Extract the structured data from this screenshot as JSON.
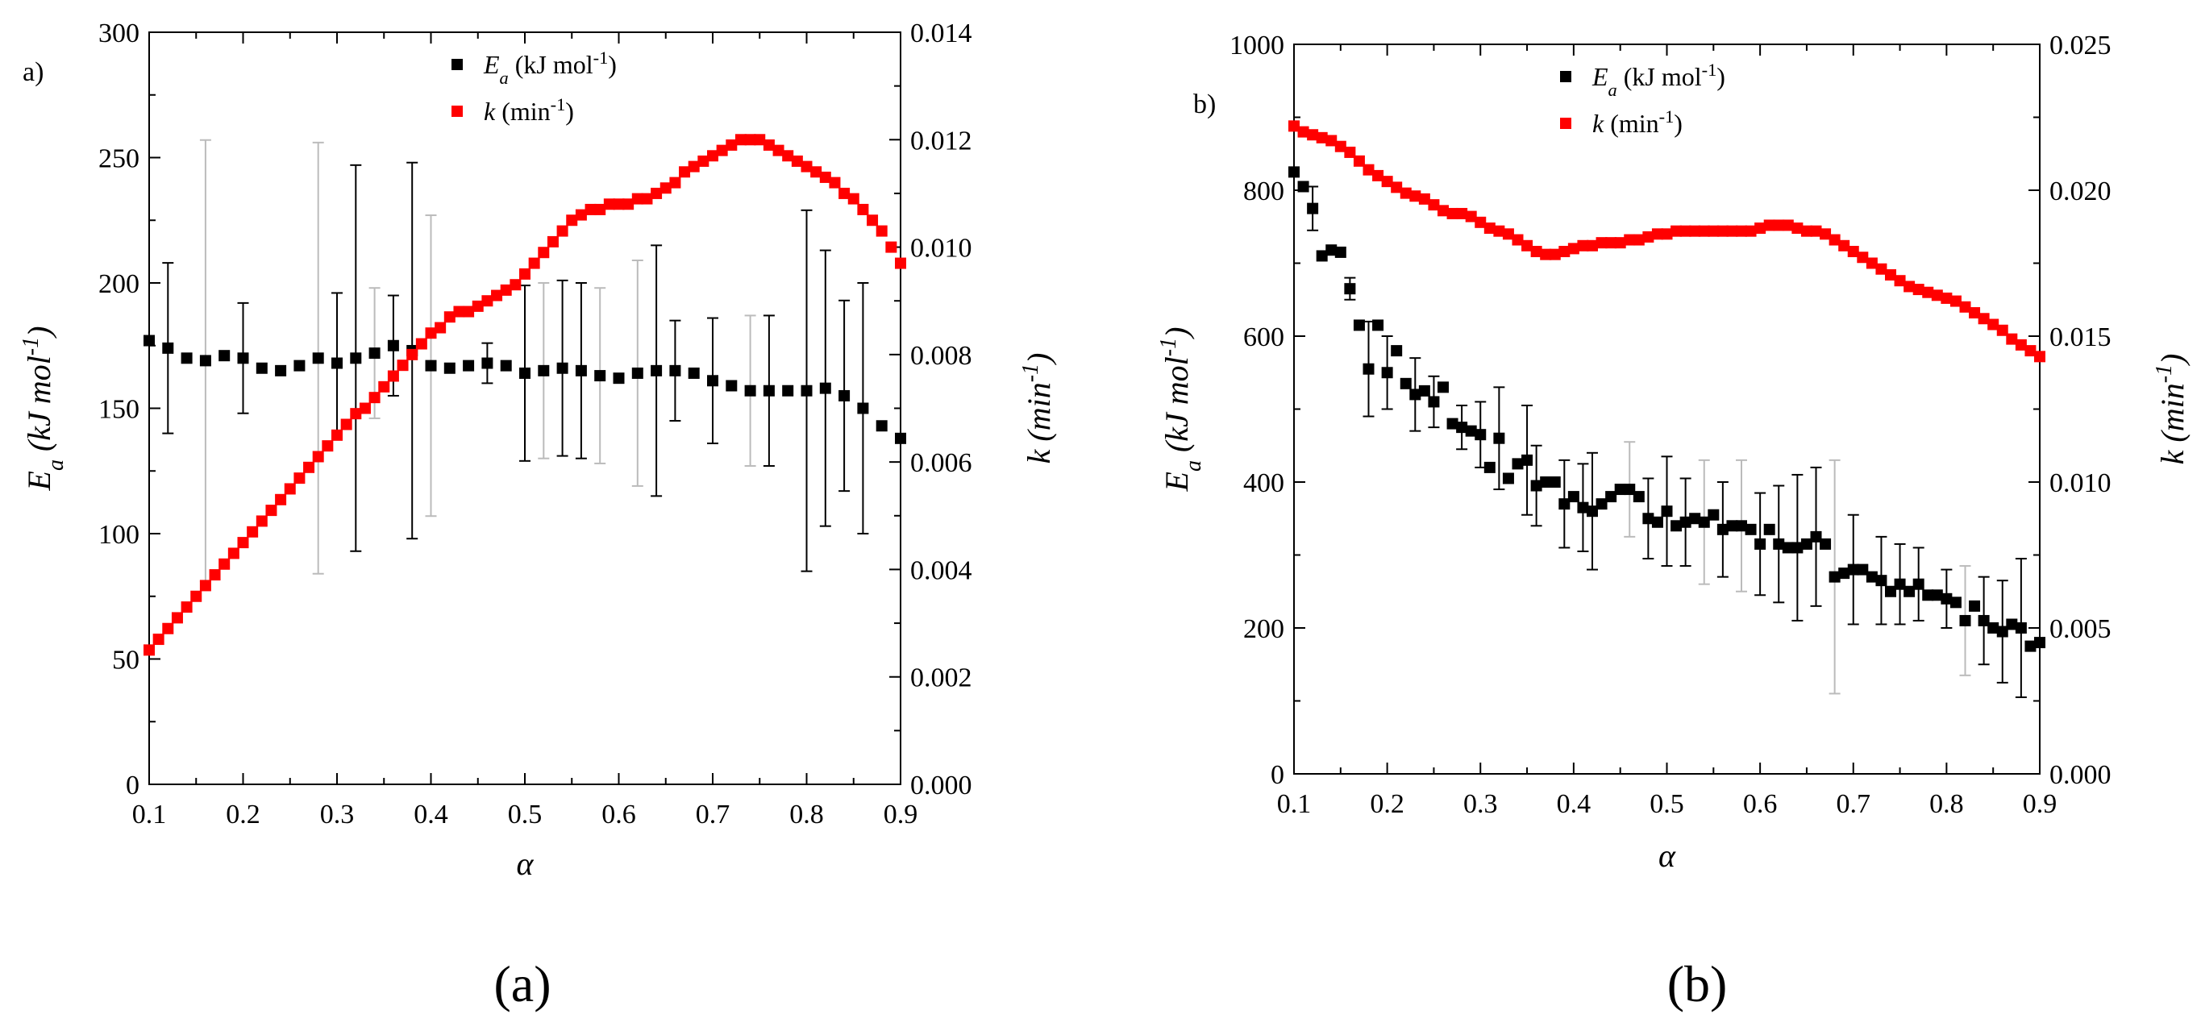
{
  "figure": {
    "captions": [
      "(a)",
      "(b)"
    ],
    "colors": {
      "ea": "#000000",
      "k": "#ff0000",
      "err_light": "#bbbbbb"
    }
  },
  "chart_data": [
    {
      "type": "scatter",
      "panel_label": "a)",
      "caption": "(a)",
      "xlabel": "α",
      "ylabel_left": {
        "sym": "E",
        "sub": "a",
        "unit": " (kJ mol",
        "sup": "-1",
        "close": ")"
      },
      "ylabel_right": {
        "sym": "k",
        "unit": " (min",
        "sup": "-1",
        "close": ")"
      },
      "xlim": [
        0.1,
        0.9
      ],
      "xticks": [
        0.1,
        0.2,
        0.3,
        0.4,
        0.5,
        0.6,
        0.7,
        0.8,
        0.9
      ],
      "xtick_labels": [
        "0.1",
        "0.2",
        "0.3",
        "0.4",
        "0.5",
        "0.6",
        "0.7",
        "0.8",
        "0.9"
      ],
      "ylim_left": [
        0,
        300
      ],
      "yticks_left": [
        0,
        50,
        100,
        150,
        200,
        250,
        300
      ],
      "ytick_labels_left": [
        "0",
        "50",
        "100",
        "150",
        "200",
        "250",
        "300"
      ],
      "ylim_right": [
        0,
        0.014
      ],
      "yticks_right": [
        0,
        0.002,
        0.004,
        0.006,
        0.008,
        0.01,
        0.012,
        0.014
      ],
      "ytick_labels_right": [
        "0.000",
        "0.002",
        "0.004",
        "0.006",
        "0.008",
        "0.010",
        "0.012",
        "0.014"
      ],
      "legend": [
        {
          "sym": "E",
          "sub": "a",
          "unit": " (kJ mol",
          "sup": "-1",
          "close": ")",
          "color": "#000000"
        },
        {
          "sym": "k",
          "unit": " (min",
          "sup": "-1",
          "close": ")",
          "color": "#ff0000"
        }
      ],
      "series": [
        {
          "name": "Ea (kJ mol-1)",
          "axis": "left",
          "color": "#000000",
          "x": [
            0.1,
            0.12,
            0.14,
            0.16,
            0.18,
            0.2,
            0.22,
            0.24,
            0.26,
            0.28,
            0.3,
            0.32,
            0.34,
            0.36,
            0.38,
            0.4,
            0.42,
            0.44,
            0.46,
            0.48,
            0.5,
            0.52,
            0.54,
            0.56,
            0.58,
            0.6,
            0.62,
            0.64,
            0.66,
            0.68,
            0.7,
            0.72,
            0.74,
            0.76,
            0.78,
            0.8,
            0.82,
            0.84,
            0.86,
            0.88,
            0.9
          ],
          "y": [
            177,
            174,
            170,
            169,
            171,
            170,
            166,
            165,
            167,
            170,
            168,
            170,
            172,
            175,
            173,
            167,
            166,
            167,
            168,
            167,
            164,
            165,
            166,
            165,
            163,
            162,
            164,
            165,
            165,
            164,
            161,
            159,
            157,
            157,
            157,
            157,
            158,
            155,
            150,
            143,
            138
          ],
          "err": [
            0,
            34,
            0,
            88,
            0,
            22,
            0,
            0,
            0,
            86,
            28,
            77,
            26,
            20,
            75,
            60,
            0,
            0,
            8,
            0,
            35,
            35,
            35,
            35,
            35,
            0,
            45,
            50,
            20,
            0,
            25,
            0,
            30,
            30,
            0,
            72,
            55,
            38,
            50,
            0,
            0
          ],
          "err_light": [
            false,
            false,
            false,
            true,
            false,
            false,
            false,
            false,
            false,
            true,
            false,
            false,
            true,
            false,
            false,
            true,
            false,
            false,
            false,
            false,
            false,
            true,
            false,
            false,
            true,
            false,
            true,
            false,
            false,
            false,
            false,
            false,
            true,
            false,
            false,
            false,
            false,
            false,
            false,
            false,
            false
          ]
        },
        {
          "name": "k (min-1)",
          "axis": "right",
          "color": "#ff0000",
          "x": [
            0.1,
            0.11,
            0.12,
            0.13,
            0.14,
            0.15,
            0.16,
            0.17,
            0.18,
            0.19,
            0.2,
            0.21,
            0.22,
            0.23,
            0.24,
            0.25,
            0.26,
            0.27,
            0.28,
            0.29,
            0.3,
            0.31,
            0.32,
            0.33,
            0.34,
            0.35,
            0.36,
            0.37,
            0.38,
            0.39,
            0.4,
            0.41,
            0.42,
            0.43,
            0.44,
            0.45,
            0.46,
            0.47,
            0.48,
            0.49,
            0.5,
            0.51,
            0.52,
            0.53,
            0.54,
            0.55,
            0.56,
            0.57,
            0.58,
            0.59,
            0.6,
            0.61,
            0.62,
            0.63,
            0.64,
            0.65,
            0.66,
            0.67,
            0.68,
            0.69,
            0.7,
            0.71,
            0.72,
            0.73,
            0.74,
            0.75,
            0.76,
            0.77,
            0.78,
            0.79,
            0.8,
            0.81,
            0.82,
            0.83,
            0.84,
            0.85,
            0.86,
            0.87,
            0.88,
            0.89,
            0.9
          ],
          "y": [
            0.0025,
            0.0027,
            0.0029,
            0.0031,
            0.0033,
            0.0035,
            0.0037,
            0.0039,
            0.0041,
            0.0043,
            0.0045,
            0.0047,
            0.0049,
            0.0051,
            0.0053,
            0.0055,
            0.0057,
            0.0059,
            0.0061,
            0.0063,
            0.0065,
            0.0067,
            0.0069,
            0.007,
            0.0072,
            0.0074,
            0.0076,
            0.0078,
            0.008,
            0.0082,
            0.0084,
            0.0085,
            0.0087,
            0.0088,
            0.0088,
            0.0089,
            0.009,
            0.0091,
            0.0092,
            0.0093,
            0.0095,
            0.0097,
            0.0099,
            0.0101,
            0.0103,
            0.0105,
            0.0106,
            0.0107,
            0.0107,
            0.0108,
            0.0108,
            0.0108,
            0.0109,
            0.0109,
            0.011,
            0.0111,
            0.0112,
            0.0114,
            0.0115,
            0.0116,
            0.0117,
            0.0118,
            0.0119,
            0.012,
            0.012,
            0.012,
            0.0119,
            0.0118,
            0.0117,
            0.0116,
            0.0115,
            0.0114,
            0.0113,
            0.0112,
            0.011,
            0.0109,
            0.0107,
            0.0105,
            0.0103,
            0.01,
            0.0097
          ]
        }
      ]
    },
    {
      "type": "scatter",
      "panel_label": "b)",
      "caption": "(b)",
      "xlabel": "α",
      "ylabel_left": {
        "sym": "E",
        "sub": "a",
        "unit": " (kJ mol",
        "sup": "-1",
        "close": ")"
      },
      "ylabel_right": {
        "sym": "k",
        "unit": " (min",
        "sup": "-1",
        "close": ")"
      },
      "xlim": [
        0.1,
        0.9
      ],
      "xticks": [
        0.1,
        0.2,
        0.3,
        0.4,
        0.5,
        0.6,
        0.7,
        0.8,
        0.9
      ],
      "xtick_labels": [
        "0.1",
        "0.2",
        "0.3",
        "0.4",
        "0.5",
        "0.6",
        "0.7",
        "0.8",
        "0.9"
      ],
      "ylim_left": [
        0,
        1000
      ],
      "yticks_left": [
        0,
        200,
        400,
        600,
        800,
        1000
      ],
      "ytick_labels_left": [
        "0",
        "200",
        "400",
        "600",
        "800",
        "1000"
      ],
      "ylim_right": [
        0,
        0.025
      ],
      "yticks_right": [
        0,
        0.005,
        0.01,
        0.015,
        0.02,
        0.025
      ],
      "ytick_labels_right": [
        "0.000",
        "0.005",
        "0.010",
        "0.015",
        "0.020",
        "0.025"
      ],
      "legend": [
        {
          "sym": "E",
          "sub": "a",
          "unit": " (kJ mol",
          "sup": "-1",
          "close": ")",
          "color": "#000000"
        },
        {
          "sym": "k",
          "unit": " (min",
          "sup": "-1",
          "close": ")",
          "color": "#ff0000"
        }
      ],
      "series": [
        {
          "name": "Ea (kJ mol-1)",
          "axis": "left",
          "color": "#000000",
          "x": [
            0.1,
            0.11,
            0.12,
            0.13,
            0.14,
            0.15,
            0.16,
            0.17,
            0.18,
            0.19,
            0.2,
            0.21,
            0.22,
            0.23,
            0.24,
            0.25,
            0.26,
            0.27,
            0.28,
            0.29,
            0.3,
            0.31,
            0.32,
            0.33,
            0.34,
            0.35,
            0.36,
            0.37,
            0.38,
            0.39,
            0.4,
            0.41,
            0.42,
            0.43,
            0.44,
            0.45,
            0.46,
            0.47,
            0.48,
            0.49,
            0.5,
            0.51,
            0.52,
            0.53,
            0.54,
            0.55,
            0.56,
            0.57,
            0.58,
            0.59,
            0.6,
            0.61,
            0.62,
            0.63,
            0.64,
            0.65,
            0.66,
            0.67,
            0.68,
            0.69,
            0.7,
            0.71,
            0.72,
            0.73,
            0.74,
            0.75,
            0.76,
            0.77,
            0.78,
            0.79,
            0.8,
            0.81,
            0.82,
            0.83,
            0.84,
            0.85,
            0.86,
            0.87,
            0.88,
            0.89,
            0.9
          ],
          "y": [
            825,
            805,
            775,
            710,
            718,
            715,
            665,
            615,
            555,
            615,
            550,
            580,
            535,
            520,
            525,
            510,
            530,
            480,
            475,
            470,
            465,
            420,
            460,
            405,
            425,
            430,
            395,
            400,
            400,
            370,
            380,
            365,
            360,
            370,
            380,
            390,
            390,
            380,
            350,
            345,
            360,
            340,
            345,
            350,
            345,
            355,
            335,
            340,
            340,
            335,
            315,
            335,
            315,
            310,
            310,
            315,
            325,
            315,
            270,
            275,
            280,
            280,
            270,
            265,
            250,
            260,
            250,
            260,
            245,
            245,
            240,
            235,
            210,
            230,
            210,
            200,
            195,
            205,
            200,
            175,
            180
          ],
          "err": [
            0,
            0,
            30,
            0,
            0,
            0,
            15,
            0,
            65,
            0,
            50,
            0,
            0,
            50,
            0,
            35,
            0,
            0,
            30,
            0,
            45,
            0,
            70,
            0,
            0,
            75,
            55,
            0,
            0,
            60,
            0,
            60,
            80,
            0,
            0,
            0,
            65,
            0,
            55,
            0,
            75,
            0,
            60,
            0,
            85,
            0,
            65,
            0,
            90,
            0,
            70,
            0,
            80,
            0,
            100,
            0,
            95,
            0,
            160,
            0,
            75,
            0,
            0,
            60,
            0,
            55,
            0,
            50,
            0,
            0,
            40,
            0,
            75,
            0,
            60,
            0,
            70,
            0,
            95,
            0,
            0
          ],
          "err_light": [
            false,
            false,
            false,
            false,
            false,
            false,
            false,
            false,
            false,
            false,
            false,
            false,
            false,
            false,
            false,
            false,
            false,
            false,
            false,
            false,
            false,
            false,
            false,
            false,
            false,
            false,
            false,
            false,
            false,
            false,
            false,
            false,
            false,
            false,
            false,
            false,
            true,
            false,
            false,
            false,
            false,
            false,
            false,
            false,
            true,
            false,
            false,
            false,
            true,
            false,
            false,
            false,
            false,
            false,
            false,
            false,
            false,
            false,
            true,
            false,
            false,
            false,
            false,
            false,
            false,
            false,
            false,
            false,
            false,
            false,
            false,
            false,
            true,
            false,
            false,
            false,
            false,
            false,
            false,
            false,
            false
          ]
        },
        {
          "name": "k (min-1)",
          "axis": "right",
          "color": "#ff0000",
          "x": [
            0.1,
            0.11,
            0.12,
            0.13,
            0.14,
            0.15,
            0.16,
            0.17,
            0.18,
            0.19,
            0.2,
            0.21,
            0.22,
            0.23,
            0.24,
            0.25,
            0.26,
            0.27,
            0.28,
            0.29,
            0.3,
            0.31,
            0.32,
            0.33,
            0.34,
            0.35,
            0.36,
            0.37,
            0.38,
            0.39,
            0.4,
            0.41,
            0.42,
            0.43,
            0.44,
            0.45,
            0.46,
            0.47,
            0.48,
            0.49,
            0.5,
            0.51,
            0.52,
            0.53,
            0.54,
            0.55,
            0.56,
            0.57,
            0.58,
            0.59,
            0.6,
            0.61,
            0.62,
            0.63,
            0.64,
            0.65,
            0.66,
            0.67,
            0.68,
            0.69,
            0.7,
            0.71,
            0.72,
            0.73,
            0.74,
            0.75,
            0.76,
            0.77,
            0.78,
            0.79,
            0.8,
            0.81,
            0.82,
            0.83,
            0.84,
            0.85,
            0.86,
            0.87,
            0.88,
            0.89,
            0.9
          ],
          "y": [
            0.0222,
            0.022,
            0.0219,
            0.0218,
            0.0217,
            0.0215,
            0.0213,
            0.021,
            0.0207,
            0.0205,
            0.0203,
            0.0201,
            0.0199,
            0.0198,
            0.0197,
            0.0195,
            0.0193,
            0.0192,
            0.0192,
            0.0191,
            0.0189,
            0.0187,
            0.0186,
            0.0185,
            0.0183,
            0.0181,
            0.0179,
            0.0178,
            0.0178,
            0.0179,
            0.018,
            0.0181,
            0.0181,
            0.0182,
            0.0182,
            0.0182,
            0.0183,
            0.0183,
            0.0184,
            0.0185,
            0.0185,
            0.0186,
            0.0186,
            0.0186,
            0.0186,
            0.0186,
            0.0186,
            0.0186,
            0.0186,
            0.0186,
            0.0187,
            0.0188,
            0.0188,
            0.0188,
            0.0187,
            0.0186,
            0.0186,
            0.0185,
            0.0183,
            0.0181,
            0.0179,
            0.0177,
            0.0175,
            0.0173,
            0.0171,
            0.0169,
            0.0167,
            0.0166,
            0.0165,
            0.0164,
            0.0163,
            0.0162,
            0.016,
            0.0158,
            0.0156,
            0.0154,
            0.0152,
            0.0149,
            0.0147,
            0.0145,
            0.0143
          ]
        }
      ]
    }
  ]
}
